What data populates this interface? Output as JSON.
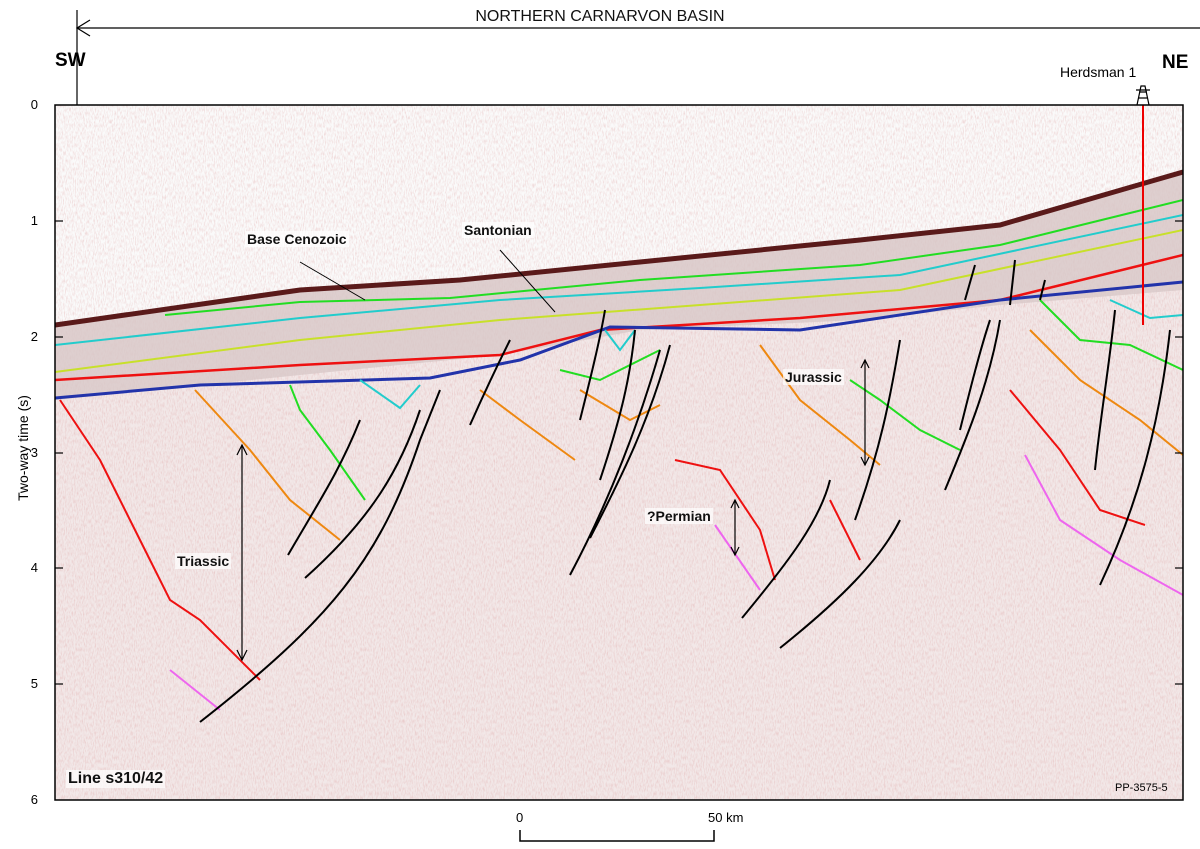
{
  "header": {
    "basin_title": "NORTHERN CARNARVON BASIN",
    "left_direction": "SW",
    "right_direction": "NE"
  },
  "well": {
    "name": "Herdsman 1",
    "icon": "drilling-rig-icon"
  },
  "y_axis": {
    "label": "Two-way time (s)",
    "ticks": [
      "0",
      "1",
      "2",
      "3",
      "4",
      "5",
      "6"
    ]
  },
  "annotations": {
    "base_cenozoic": "Base Cenozoic",
    "santonian": "Santonian",
    "jurassic": "Jurassic",
    "triassic": "Triassic",
    "permian": "?Permian"
  },
  "line_label": "Line s310/42",
  "figure_id": "PP-3575-5",
  "scale_bar": {
    "start": "0",
    "end": "50 km"
  },
  "colors": {
    "seafloor": "#5a1a1a",
    "base_cenozoic": "#22dd22",
    "santonian": "#c8e02a",
    "red_horizon": "#ee1111",
    "blue_horizon": "#2233aa",
    "cyan_horizon": "#22cccc",
    "orange_horizon": "#ee8811",
    "pink_horizon": "#ee66ee",
    "faults": "#000000",
    "well_track": "#ee0000"
  }
}
